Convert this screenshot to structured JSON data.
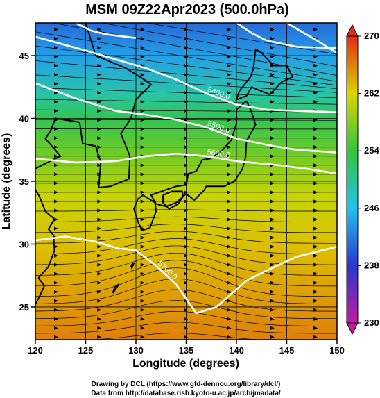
{
  "chart_data": {
    "type": "heatmap",
    "title": "MSM 09Z22Apr2023 (500.0hPa)",
    "xlabel": "Longitude (degrees)",
    "ylabel": "Latitude  (degrees)",
    "xlim": [
      120,
      150
    ],
    "ylim": [
      22.4,
      47.6
    ],
    "x_ticks": [
      120,
      125,
      130,
      135,
      140,
      145,
      150
    ],
    "y_ticks": [
      25,
      30,
      35,
      40,
      45
    ],
    "colorbar": {
      "range": [
        230,
        270
      ],
      "ticks": [
        230,
        238,
        246,
        254,
        262,
        270
      ],
      "position": "right",
      "extend": "both"
    },
    "shading_variable_range": [
      262,
      240
    ],
    "temperature_field": [
      {
        "lat": 47.6,
        "value": 241
      },
      {
        "lat": 45,
        "value": 244
      },
      {
        "lat": 42,
        "value": 249
      },
      {
        "lat": 40,
        "value": 253
      },
      {
        "lat": 37,
        "value": 257
      },
      {
        "lat": 34,
        "value": 261
      },
      {
        "lat": 30,
        "value": 263
      },
      {
        "lat": 25,
        "value": 265
      },
      {
        "lat": 22.4,
        "value": 266
      }
    ],
    "contours": [
      {
        "label": "5400.0",
        "points": [
          [
            120,
            46.5
          ],
          [
            125,
            45.4
          ],
          [
            128,
            44.7
          ],
          [
            131,
            44.0
          ],
          [
            134,
            43.1
          ],
          [
            137,
            42.0
          ],
          [
            140,
            41.1
          ],
          [
            143,
            40.7
          ],
          [
            146,
            40.6
          ],
          [
            150,
            40.5
          ]
        ]
      },
      {
        "label": "5500.0",
        "points": [
          [
            120,
            42.8
          ],
          [
            124,
            41.6
          ],
          [
            128,
            40.6
          ],
          [
            131,
            40.3
          ],
          [
            134,
            39.9
          ],
          [
            137,
            39.3
          ],
          [
            140,
            38.4
          ],
          [
            143,
            37.9
          ],
          [
            146,
            37.5
          ],
          [
            150,
            37.3
          ]
        ]
      },
      {
        "label": "5600.0",
        "points": [
          [
            120,
            36.8
          ],
          [
            124,
            36.5
          ],
          [
            128,
            36.6
          ],
          [
            131,
            37.0
          ],
          [
            134,
            37.2
          ],
          [
            137,
            37.0
          ],
          [
            140,
            36.6
          ],
          [
            144,
            36.3
          ],
          [
            147,
            36.0
          ],
          [
            150,
            35.6
          ]
        ]
      },
      {
        "label": "5700.0",
        "points": [
          [
            120,
            30.3
          ],
          [
            123,
            30.6
          ],
          [
            126,
            30.2
          ],
          [
            128,
            29.7
          ],
          [
            130,
            29.5
          ],
          [
            132,
            28.3
          ],
          [
            134,
            26.8
          ],
          [
            136,
            24.5
          ],
          [
            138,
            25.0
          ],
          [
            141,
            27.1
          ],
          [
            143,
            27.9
          ],
          [
            146,
            29.0
          ],
          [
            150,
            29.8
          ]
        ]
      },
      {
        "label": "",
        "points": [
          [
            140,
            47.6
          ],
          [
            141.5,
            46.8
          ],
          [
            143,
            46.2
          ],
          [
            146,
            45.7
          ],
          [
            150,
            45.6
          ]
        ]
      },
      {
        "label": "",
        "points": [
          [
            124,
            47.6
          ],
          [
            125.5,
            47.0
          ],
          [
            127,
            46.7
          ],
          [
            130,
            46.4
          ]
        ]
      },
      {
        "label": "",
        "points": [
          [
            145,
            47.6
          ],
          [
            146.5,
            46.9
          ],
          [
            148,
            46.2
          ],
          [
            150,
            45.2
          ]
        ]
      }
    ],
    "grid": true
  },
  "credits": {
    "line1": "Drawing by DCL (https://www.gfd-dennou.org/library/dcl/)",
    "line2": "Data from http://database.rish.kyoto-u.ac.jp/arch/jmadata/"
  },
  "colors": {
    "cb_230": "#c21aa0",
    "cb_238": "#2a37cc",
    "cb_246": "#22c2ee",
    "cb_254": "#35c43a",
    "cb_262": "#d9d600",
    "cb_270": "#e52a13"
  }
}
